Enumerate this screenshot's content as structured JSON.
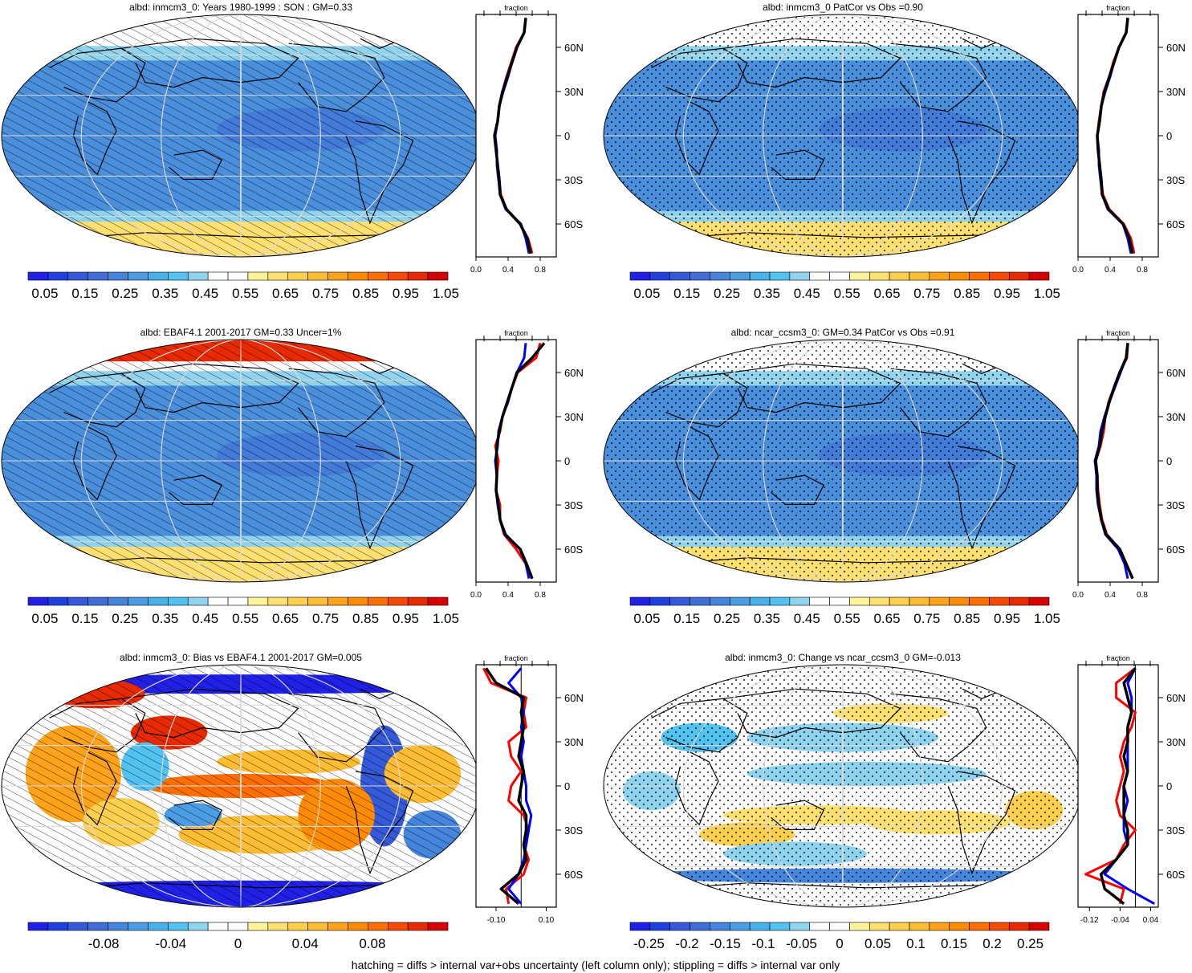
{
  "footer": "hatching = diffs > internal var+obs uncertainty (left column only); stippling = diffs > internal var only",
  "colors": {
    "scale_abs": [
      "#2020e6",
      "#1f40e0",
      "#3459d9",
      "#3e6ed6",
      "#4585dc",
      "#4c9de3",
      "#49b1ea",
      "#52c2f0",
      "#8fd3ee",
      "#ffffff",
      "#ffffff",
      "#fff39a",
      "#ffe070",
      "#ffcf4e",
      "#ffbd33",
      "#ffa31a",
      "#ff8c00",
      "#ff6e00",
      "#f54a00",
      "#e82a00",
      "#d60000"
    ],
    "scale_bias": [
      "#2020e6",
      "#1f40e0",
      "#3459d9",
      "#3e6ed6",
      "#4585dc",
      "#4c9de3",
      "#49b1ea",
      "#52c2f0",
      "#8fd3ee",
      "#ffffff",
      "#ffffff",
      "#fff39a",
      "#ffe070",
      "#ffcf4e",
      "#ffbd33",
      "#ffa31a",
      "#ff8c00",
      "#ff6e00",
      "#f54a00",
      "#e82a00",
      "#d60000"
    ],
    "line_model": "#0000ff",
    "line_obs": "#ff0000",
    "line_mean": "#000000"
  },
  "lat_tick_labels": [
    "60N",
    "30N",
    "0",
    "30S",
    "60S"
  ],
  "panels": [
    {
      "title": "albd: inmcm3_0: Years 1980-1999 : SON : GM=0.33",
      "pattern": "hatch",
      "field": "abs",
      "colorbar_labels": [
        "0.05",
        "0.15",
        "0.25",
        "0.35",
        "0.45",
        "0.55",
        "0.65",
        "0.75",
        "0.85",
        "0.95",
        "1.05"
      ]
    },
    {
      "title": "albd: inmcm3_0 PatCor vs Obs =0.90",
      "pattern": "stipple",
      "field": "abs",
      "colorbar_labels": [
        "0.05",
        "0.15",
        "0.25",
        "0.35",
        "0.45",
        "0.55",
        "0.65",
        "0.75",
        "0.85",
        "0.95",
        "1.05"
      ]
    },
    {
      "title": "albd: EBAF4.1 2001-2017 GM=0.33 Uncer=1%",
      "pattern": "hatch",
      "field": "abs",
      "colorbar_labels": [
        "0.05",
        "0.15",
        "0.25",
        "0.35",
        "0.45",
        "0.55",
        "0.65",
        "0.75",
        "0.85",
        "0.95",
        "1.05"
      ]
    },
    {
      "title": "albd: ncar_ccsm3_0: GM=0.34 PatCor vs Obs =0.91",
      "pattern": "stipple",
      "field": "abs",
      "colorbar_labels": [
        "0.05",
        "0.15",
        "0.25",
        "0.35",
        "0.45",
        "0.55",
        "0.65",
        "0.75",
        "0.85",
        "0.95",
        "1.05"
      ]
    },
    {
      "title": "albd: inmcm3_0: Bias vs EBAF4.1 2001-2017  GM=0.005",
      "pattern": "hatch",
      "field": "bias",
      "colorbar_labels": [
        "-0.08",
        "-0.04",
        "0",
        "0.04",
        "0.08"
      ]
    },
    {
      "title": "albd: inmcm3_0: Change vs ncar_ccsm3_0 GM=-0.013",
      "pattern": "stipple",
      "field": "change",
      "colorbar_labels": [
        "-0.25",
        "-0.2",
        "-0.15",
        "-0.1",
        "-0.05",
        "0",
        "0.05",
        "0.1",
        "0.15",
        "0.2",
        "0.25"
      ]
    }
  ],
  "chart_data": [
    {
      "type": "line",
      "title": "fraction",
      "xlim": [
        0,
        1
      ],
      "x_tick_labels": [
        "0.0",
        "0.4",
        "0.8"
      ],
      "y": [
        -80,
        -70,
        -60,
        -50,
        -40,
        -30,
        -20,
        -10,
        0,
        10,
        20,
        30,
        40,
        50,
        60,
        70,
        80
      ],
      "series": [
        {
          "values": [
            0.7,
            0.65,
            0.55,
            0.38,
            0.31,
            0.29,
            0.27,
            0.25,
            0.23,
            0.27,
            0.29,
            0.33,
            0.38,
            0.44,
            0.5,
            0.6,
            0.62
          ]
        },
        {
          "values": [
            0.66,
            0.62,
            0.56,
            0.37,
            0.3,
            0.28,
            0.26,
            0.26,
            0.24,
            0.27,
            0.29,
            0.34,
            0.4,
            0.45,
            0.51,
            0.6,
            0.62
          ]
        },
        {
          "values": [
            0.68,
            0.64,
            0.55,
            0.38,
            0.3,
            0.29,
            0.27,
            0.25,
            0.23,
            0.27,
            0.29,
            0.33,
            0.39,
            0.45,
            0.51,
            0.6,
            0.62
          ]
        }
      ]
    },
    {
      "type": "line",
      "title": "fraction",
      "xlim": [
        0,
        1
      ],
      "x_tick_labels": [
        "0.0",
        "0.4",
        "0.8"
      ],
      "y": [
        -80,
        -70,
        -60,
        -50,
        -40,
        -30,
        -20,
        -10,
        0,
        10,
        20,
        30,
        40,
        50,
        60,
        70,
        80
      ],
      "series": [
        {
          "values": [
            0.7,
            0.66,
            0.57,
            0.39,
            0.31,
            0.29,
            0.27,
            0.25,
            0.24,
            0.26,
            0.29,
            0.32,
            0.39,
            0.44,
            0.51,
            0.6,
            0.62
          ]
        },
        {
          "values": [
            0.66,
            0.62,
            0.56,
            0.37,
            0.3,
            0.28,
            0.26,
            0.26,
            0.24,
            0.27,
            0.29,
            0.34,
            0.4,
            0.45,
            0.51,
            0.6,
            0.62
          ]
        },
        {
          "values": [
            0.68,
            0.64,
            0.56,
            0.38,
            0.3,
            0.29,
            0.27,
            0.25,
            0.24,
            0.27,
            0.29,
            0.33,
            0.39,
            0.45,
            0.51,
            0.6,
            0.62
          ]
        }
      ]
    },
    {
      "type": "line",
      "title": "fraction",
      "xlim": [
        0,
        1
      ],
      "x_tick_labels": [
        "0.0",
        "0.4",
        "0.8"
      ],
      "y": [
        -80,
        -70,
        -60,
        -50,
        -40,
        -30,
        -20,
        -10,
        0,
        10,
        20,
        30,
        40,
        50,
        60,
        70,
        80
      ],
      "series": [
        {
          "values": [
            0.7,
            0.62,
            0.5,
            0.35,
            0.3,
            0.3,
            0.25,
            0.26,
            0.28,
            0.24,
            0.3,
            0.33,
            0.39,
            0.45,
            0.52,
            0.75,
            0.8
          ]
        },
        {
          "values": [
            0.66,
            0.62,
            0.55,
            0.37,
            0.3,
            0.27,
            0.25,
            0.26,
            0.24,
            0.27,
            0.28,
            0.33,
            0.4,
            0.45,
            0.51,
            0.6,
            0.62
          ]
        },
        {
          "values": [
            0.7,
            0.63,
            0.55,
            0.36,
            0.3,
            0.28,
            0.25,
            0.26,
            0.25,
            0.26,
            0.29,
            0.33,
            0.39,
            0.45,
            0.51,
            0.7,
            0.85
          ]
        }
      ]
    },
    {
      "type": "line",
      "title": "fraction",
      "xlim": [
        0,
        1
      ],
      "x_tick_labels": [
        "0.0",
        "0.4",
        "0.8"
      ],
      "y": [
        -80,
        -70,
        -60,
        -50,
        -40,
        -30,
        -20,
        -10,
        0,
        10,
        20,
        30,
        40,
        50,
        60,
        70,
        80
      ],
      "series": [
        {
          "values": [
            0.68,
            0.6,
            0.52,
            0.36,
            0.3,
            0.27,
            0.25,
            0.24,
            0.22,
            0.28,
            0.32,
            0.34,
            0.38,
            0.45,
            0.52,
            0.61,
            0.62
          ]
        },
        {
          "values": [
            0.62,
            0.58,
            0.5,
            0.34,
            0.29,
            0.25,
            0.23,
            0.23,
            0.21,
            0.26,
            0.28,
            0.33,
            0.39,
            0.46,
            0.53,
            0.6,
            0.62
          ]
        },
        {
          "values": [
            0.68,
            0.6,
            0.52,
            0.35,
            0.29,
            0.26,
            0.24,
            0.24,
            0.22,
            0.27,
            0.3,
            0.34,
            0.39,
            0.45,
            0.52,
            0.6,
            0.62
          ]
        }
      ]
    },
    {
      "type": "line",
      "title": "fraction",
      "xlim": [
        -0.18,
        0.14
      ],
      "x_tick_labels": [
        "-0.10",
        "0.10"
      ],
      "y": [
        -80,
        -70,
        -60,
        -50,
        -40,
        -30,
        -20,
        -10,
        0,
        10,
        20,
        30,
        40,
        50,
        60,
        70,
        80
      ],
      "series": [
        {
          "values": [
            -0.05,
            -0.06,
            0.01,
            0.03,
            0.01,
            0.03,
            0.01,
            -0.05,
            -0.04,
            0.0,
            -0.04,
            -0.05,
            0.02,
            0.01,
            0.02,
            -0.12,
            -0.15
          ]
        },
        {
          "values": [
            0.0,
            -0.05,
            -0.01,
            0.01,
            0.02,
            0.03,
            0.04,
            0.02,
            0.02,
            0.01,
            0.0,
            0.01,
            0.0,
            0.01,
            0.0,
            -0.05,
            0.0
          ]
        },
        {
          "values": [
            -0.01,
            -0.08,
            -0.01,
            0.02,
            0.01,
            0.02,
            0.02,
            -0.01,
            0.0,
            0.01,
            -0.01,
            0.0,
            0.01,
            0.0,
            0.01,
            -0.1,
            -0.14
          ]
        }
      ]
    },
    {
      "type": "line",
      "title": "fraction",
      "xlim": [
        -0.15,
        0.06
      ],
      "x_tick_labels": [
        "-0.12",
        "-0.04",
        "0.04"
      ],
      "y": [
        -80,
        -70,
        -60,
        -50,
        -40,
        -30,
        -20,
        -10,
        0,
        10,
        20,
        30,
        40,
        50,
        60,
        70,
        80
      ],
      "series": [
        {
          "values": [
            -0.04,
            -0.03,
            -0.13,
            -0.05,
            -0.03,
            0.0,
            -0.04,
            -0.05,
            -0.04,
            -0.03,
            -0.04,
            -0.03,
            -0.01,
            0.0,
            -0.05,
            -0.05,
            0.0
          ]
        },
        {
          "values": [
            0.05,
            -0.02,
            -0.08,
            -0.05,
            -0.02,
            -0.03,
            -0.03,
            -0.02,
            -0.03,
            -0.02,
            -0.02,
            -0.02,
            -0.02,
            -0.01,
            -0.01,
            -0.02,
            0.0
          ]
        },
        {
          "values": [
            -0.03,
            -0.08,
            -0.09,
            -0.05,
            -0.02,
            -0.02,
            -0.03,
            -0.03,
            -0.03,
            -0.02,
            -0.03,
            -0.02,
            -0.02,
            -0.01,
            -0.02,
            -0.03,
            0.0
          ]
        }
      ]
    }
  ]
}
